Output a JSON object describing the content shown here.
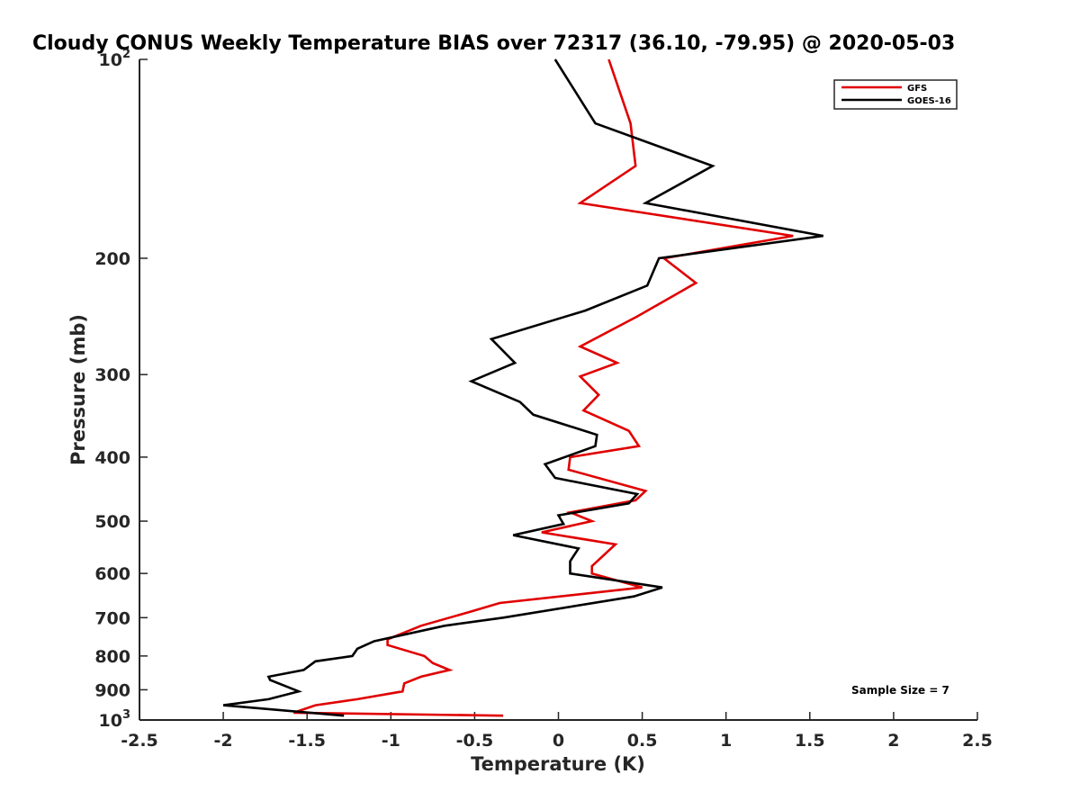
{
  "chart_data": {
    "type": "line",
    "title": "Cloudy CONUS Weekly Temperature BIAS over 72317 (36.10, -79.95) @ 2020-05-03",
    "xlabel": "Temperature (K)",
    "ylabel": "Pressure (mb)",
    "xlim": [
      -2.5,
      2.5
    ],
    "ylim": [
      100,
      1000
    ],
    "y_scale": "log",
    "y_reversed": true,
    "grid": false,
    "legend_position": "top-right",
    "x_ticks": [
      "-2.5",
      "-2",
      "-1.5",
      "-1",
      "-0.5",
      "0",
      "0.5",
      "1",
      "1.5",
      "2",
      "2.5"
    ],
    "y_ticks": [
      {
        "base": "10",
        "exp": "2"
      },
      {
        "base": "200",
        "exp": ""
      },
      {
        "base": "300",
        "exp": ""
      },
      {
        "base": "400",
        "exp": ""
      },
      {
        "base": "500",
        "exp": ""
      },
      {
        "base": "600",
        "exp": ""
      },
      {
        "base": "700",
        "exp": ""
      },
      {
        "base": "800",
        "exp": ""
      },
      {
        "base": "900",
        "exp": ""
      },
      {
        "base": "10",
        "exp": "3"
      }
    ],
    "annotation": "Sample Size = 7",
    "series": [
      {
        "name": "GFS",
        "color": "#e00000",
        "points": [
          [
            0.3,
            100
          ],
          [
            0.43,
            125
          ],
          [
            0.46,
            145
          ],
          [
            0.13,
            165
          ],
          [
            1.4,
            185
          ],
          [
            0.63,
            200
          ],
          [
            0.82,
            218
          ],
          [
            0.47,
            245
          ],
          [
            0.13,
            272
          ],
          [
            0.35,
            288
          ],
          [
            0.13,
            302
          ],
          [
            0.24,
            322
          ],
          [
            0.15,
            340
          ],
          [
            0.42,
            365
          ],
          [
            0.48,
            385
          ],
          [
            0.07,
            400
          ],
          [
            0.06,
            418
          ],
          [
            0.52,
            450
          ],
          [
            0.46,
            465
          ],
          [
            0.07,
            485
          ],
          [
            0.2,
            500
          ],
          [
            -0.1,
            520
          ],
          [
            0.34,
            542
          ],
          [
            0.2,
            585
          ],
          [
            0.2,
            600
          ],
          [
            0.5,
            630
          ],
          [
            -0.35,
            665
          ],
          [
            -0.52,
            685
          ],
          [
            -0.82,
            720
          ],
          [
            -1.02,
            755
          ],
          [
            -1.02,
            770
          ],
          [
            -0.8,
            800
          ],
          [
            -0.75,
            820
          ],
          [
            -0.65,
            840
          ],
          [
            -0.82,
            860
          ],
          [
            -0.92,
            880
          ],
          [
            -0.93,
            905
          ],
          [
            -1.2,
            930
          ],
          [
            -1.45,
            950
          ],
          [
            -1.58,
            975
          ],
          [
            -0.33,
            985
          ]
        ]
      },
      {
        "name": "GOES-16",
        "color": "#000000",
        "points": [
          [
            -0.02,
            100
          ],
          [
            0.22,
            125
          ],
          [
            0.92,
            145
          ],
          [
            0.52,
            165
          ],
          [
            1.58,
            185
          ],
          [
            0.6,
            200
          ],
          [
            0.53,
            220
          ],
          [
            0.16,
            240
          ],
          [
            -0.4,
            265
          ],
          [
            -0.26,
            288
          ],
          [
            -0.52,
            307
          ],
          [
            -0.23,
            330
          ],
          [
            -0.15,
            345
          ],
          [
            0.23,
            370
          ],
          [
            0.22,
            385
          ],
          [
            -0.08,
            410
          ],
          [
            -0.02,
            430
          ],
          [
            0.47,
            455
          ],
          [
            0.42,
            470
          ],
          [
            0.0,
            490
          ],
          [
            0.03,
            505
          ],
          [
            -0.27,
            525
          ],
          [
            0.12,
            550
          ],
          [
            0.07,
            575
          ],
          [
            0.07,
            600
          ],
          [
            0.62,
            630
          ],
          [
            0.45,
            650
          ],
          [
            -0.33,
            700
          ],
          [
            -0.68,
            720
          ],
          [
            -1.1,
            760
          ],
          [
            -1.2,
            780
          ],
          [
            -1.23,
            800
          ],
          [
            -1.45,
            815
          ],
          [
            -1.52,
            840
          ],
          [
            -1.73,
            860
          ],
          [
            -1.72,
            870
          ],
          [
            -1.55,
            905
          ],
          [
            -1.73,
            930
          ],
          [
            -2.0,
            950
          ],
          [
            -1.28,
            985
          ]
        ]
      }
    ]
  }
}
